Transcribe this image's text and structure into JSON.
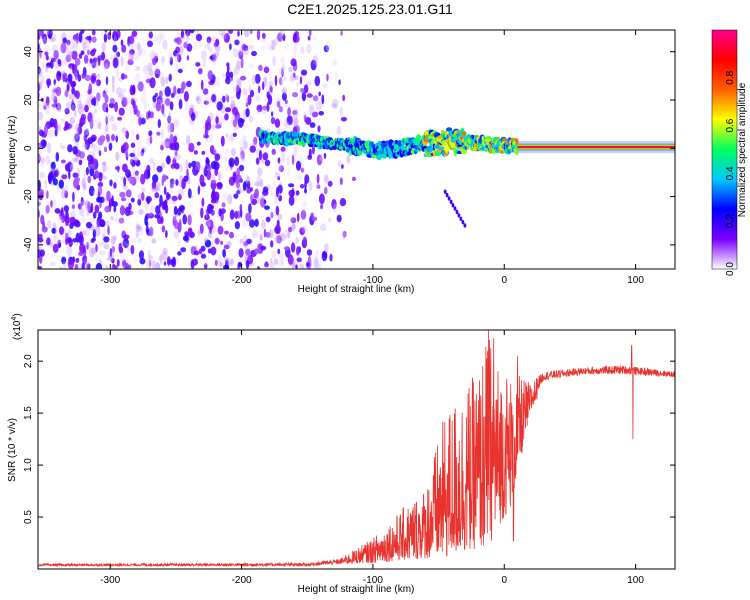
{
  "title": "C2E1.2025.125.23.01.G11",
  "chart_data": [
    {
      "type": "heatmap",
      "xlabel": "Height of straight line (km)",
      "ylabel": "Frequency (Hz)",
      "xlim": [
        -355,
        130
      ],
      "ylim": [
        -50,
        49
      ],
      "x_ticks": [
        -300,
        -200,
        -100,
        0,
        100
      ],
      "y_ticks": [
        -40,
        -20,
        0,
        20,
        40
      ],
      "colorbar": {
        "label": "Normalized spectral amplitude",
        "range": [
          0,
          1
        ],
        "ticks": [
          "0.0",
          "0.2",
          "0.4",
          "0.6",
          "0.8"
        ],
        "stops": [
          "#ffffff",
          "#7a00ff",
          "#0000ff",
          "#00c8ff",
          "#00ff60",
          "#ffff00",
          "#ff6000",
          "#ff0000",
          "#ff0090"
        ]
      },
      "features": {
        "noise_region": {
          "x_range": [
            -355,
            -110
          ],
          "freq_range": [
            -50,
            49
          ],
          "amplitude": [
            0.02,
            0.2
          ]
        },
        "signal_trace": [
          {
            "x": -185,
            "f": 4.5
          },
          {
            "x": -150,
            "f": 3.5
          },
          {
            "x": -120,
            "f": 1.5
          },
          {
            "x": -100,
            "f": -1
          },
          {
            "x": -80,
            "f": 0
          },
          {
            "x": -60,
            "f": 2
          },
          {
            "x": -40,
            "f": 3
          },
          {
            "x": -20,
            "f": 2
          },
          {
            "x": 0,
            "f": 1
          },
          {
            "x": 20,
            "f": 0.5
          },
          {
            "x": 130,
            "f": 0.5
          }
        ],
        "streak": [
          {
            "x": -45,
            "f": -18
          },
          {
            "x": -30,
            "f": -32
          }
        ]
      }
    },
    {
      "type": "line",
      "xlabel": "Height of straight line (km)",
      "ylabel": "SNR (10 * v/v)",
      "multiplier_label": "(x10",
      "multiplier_exp": "4",
      "multiplier_close": ")",
      "xlim": [
        -355,
        130
      ],
      "ylim": [
        0,
        2.3
      ],
      "x_ticks": [
        -300,
        -200,
        -100,
        0,
        100
      ],
      "y_ticks": [
        "0.5",
        "1.0",
        "1.5",
        "2.0"
      ],
      "y_tick_values": [
        0.5,
        1.0,
        1.5,
        2.0
      ],
      "color": "#e8332e",
      "envelope": [
        {
          "x": -355,
          "base": 0.03,
          "peak": 0.05
        },
        {
          "x": -150,
          "base": 0.03,
          "peak": 0.06
        },
        {
          "x": -125,
          "base": 0.05,
          "peak": 0.1
        },
        {
          "x": -100,
          "base": 0.06,
          "peak": 0.3
        },
        {
          "x": -80,
          "base": 0.08,
          "peak": 0.55
        },
        {
          "x": -60,
          "base": 0.1,
          "peak": 0.8
        },
        {
          "x": -45,
          "base": 0.1,
          "peak": 1.5
        },
        {
          "x": -35,
          "base": 0.15,
          "peak": 1.7
        },
        {
          "x": -20,
          "base": 0.2,
          "peak": 1.9
        },
        {
          "x": -12,
          "base": 0.2,
          "peak": 2.3
        },
        {
          "x": -5,
          "base": 0.4,
          "peak": 2.0
        },
        {
          "x": 5,
          "base": 0.6,
          "peak": 1.9
        },
        {
          "x": 20,
          "base": 1.5,
          "peak": 1.8
        },
        {
          "x": 30,
          "base": 1.78,
          "peak": 1.9
        },
        {
          "x": 60,
          "base": 1.84,
          "peak": 1.94
        },
        {
          "x": 90,
          "base": 1.84,
          "peak": 1.96
        },
        {
          "x": 130,
          "base": 1.82,
          "peak": 1.9
        }
      ],
      "spikes": [
        {
          "x": -12,
          "y": 2.3
        },
        {
          "x": -8,
          "y": 2.22
        },
        {
          "x": 7,
          "y": 0.27
        },
        {
          "x": 97,
          "y": 2.15
        },
        {
          "x": 98,
          "y": 1.25
        },
        {
          "x": 10,
          "y": 2.05
        }
      ]
    }
  ]
}
